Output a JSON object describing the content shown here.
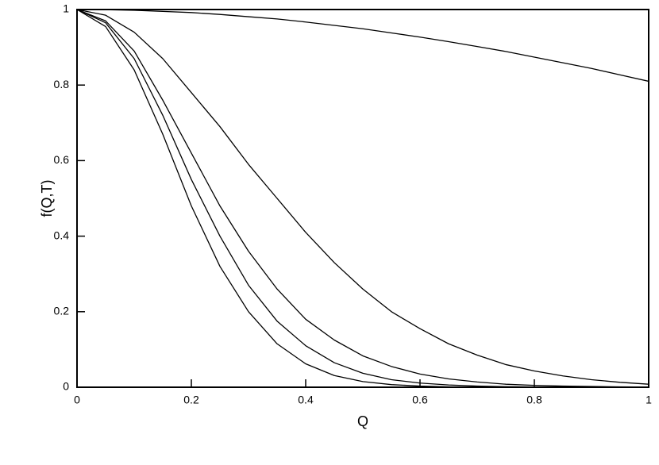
{
  "chart_data": {
    "type": "line",
    "xlabel": "Q",
    "ylabel": "f(Q,T)",
    "x": [
      0,
      0.05,
      0.1,
      0.15,
      0.2,
      0.25,
      0.3,
      0.35,
      0.4,
      0.45,
      0.5,
      0.55,
      0.6,
      0.65,
      0.7,
      0.75,
      0.8,
      0.85,
      0.9,
      0.95,
      1
    ],
    "series": [
      {
        "color": "#000000",
        "values": [
          1,
          0.9995,
          0.998,
          0.995,
          0.992,
          0.987,
          0.981,
          0.975,
          0.967,
          0.958,
          0.949,
          0.938,
          0.927,
          0.915,
          0.902,
          0.889,
          0.874,
          0.859,
          0.844,
          0.827,
          0.81
        ]
      },
      {
        "color": "#000000",
        "values": [
          1,
          0.985,
          0.94,
          0.87,
          0.78,
          0.69,
          0.59,
          0.5,
          0.41,
          0.33,
          0.26,
          0.2,
          0.155,
          0.115,
          0.085,
          0.06,
          0.043,
          0.03,
          0.02,
          0.013,
          0.008
        ]
      },
      {
        "color": "#000000",
        "values": [
          1,
          0.97,
          0.89,
          0.76,
          0.62,
          0.48,
          0.36,
          0.26,
          0.18,
          0.125,
          0.083,
          0.055,
          0.035,
          0.022,
          0.014,
          0.008,
          0.005,
          0.003,
          0.002,
          0.001,
          0.0005
        ]
      },
      {
        "color": "#000000",
        "values": [
          1,
          0.965,
          0.87,
          0.72,
          0.55,
          0.4,
          0.27,
          0.175,
          0.11,
          0.065,
          0.037,
          0.02,
          0.011,
          0.006,
          0.003,
          0.0015,
          0.0008,
          0.0004,
          0.0002,
          0.0001,
          0
        ]
      },
      {
        "color": "#000000",
        "values": [
          1,
          0.955,
          0.84,
          0.67,
          0.48,
          0.32,
          0.2,
          0.115,
          0.062,
          0.031,
          0.015,
          0.007,
          0.003,
          0.001,
          0.0005,
          0.0002,
          0,
          0,
          0,
          0,
          0
        ]
      }
    ],
    "xlim": [
      0,
      1
    ],
    "ylim": [
      0,
      1
    ],
    "xticks": [
      0,
      0.2,
      0.4,
      0.6,
      0.8,
      1
    ],
    "yticks": [
      0,
      0.2,
      0.4,
      0.6,
      0.8,
      1
    ]
  }
}
